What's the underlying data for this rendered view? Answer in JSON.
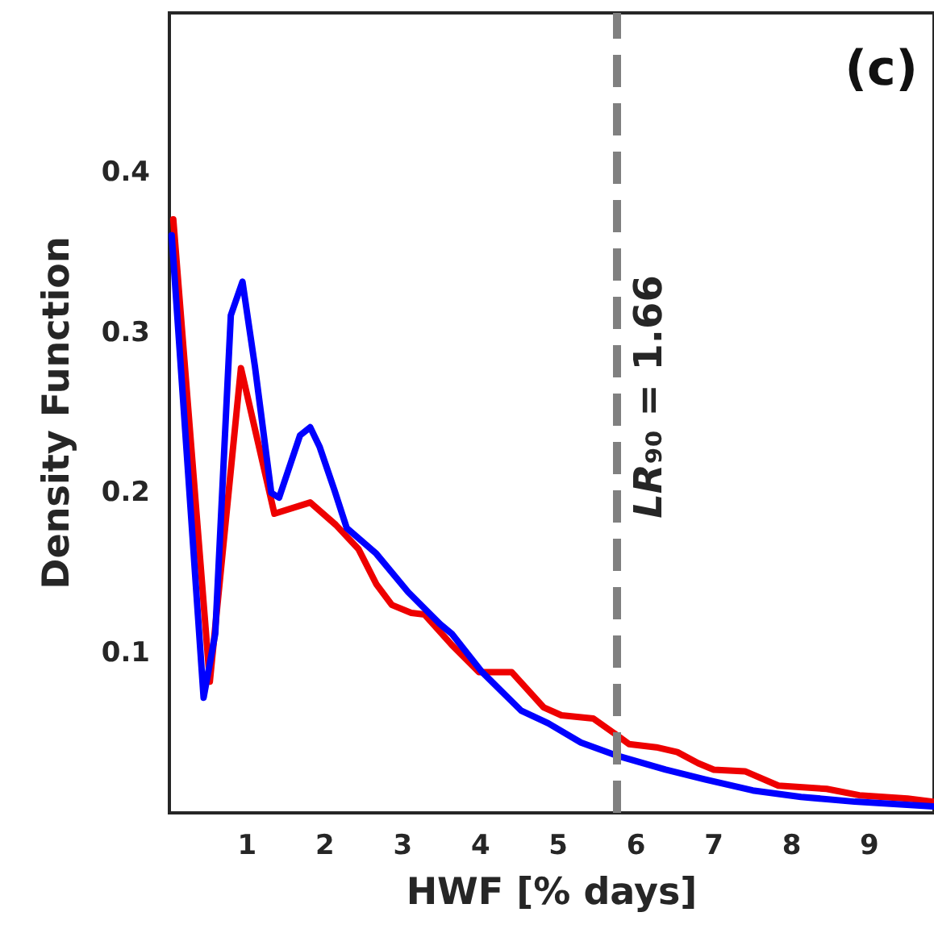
{
  "chart_data": {
    "type": "line",
    "xlabel": "HWF [% days]",
    "ylabel": "Density Function",
    "annotations": [
      "LR₉₀ = 1.66",
      "(c)"
    ],
    "xlim": [
      0,
      9.83
    ],
    "ylim": [
      0,
      0.5
    ],
    "xticks": [
      1,
      2,
      3,
      4,
      5,
      6,
      7,
      8,
      9
    ],
    "yticks": [
      0.1,
      0.2,
      0.3,
      0.4
    ],
    "grid": false,
    "marker": "none",
    "line_style": "solid",
    "ref_lines": [
      {
        "axis": "x",
        "value": 5.74,
        "color": "#808080",
        "line_style": "dashed"
      }
    ],
    "series": [
      {
        "color": "#ee0000",
        "x": [
          0.05,
          0.52,
          0.92,
          1.35,
          1.81,
          2.14,
          2.43,
          2.66,
          2.86,
          3.11,
          3.28,
          3.63,
          3.98,
          4.4,
          4.81,
          5.04,
          5.45,
          5.74,
          5.91,
          6.26,
          6.53,
          6.8,
          7.0,
          7.4,
          7.83,
          8.45,
          8.87,
          9.49,
          9.82
        ],
        "values": [
          0.371,
          0.082,
          0.278,
          0.187,
          0.194,
          0.18,
          0.165,
          0.143,
          0.13,
          0.125,
          0.124,
          0.105,
          0.088,
          0.088,
          0.066,
          0.061,
          0.059,
          0.049,
          0.043,
          0.041,
          0.038,
          0.031,
          0.027,
          0.026,
          0.017,
          0.015,
          0.011,
          0.009,
          0.007
        ]
      },
      {
        "color": "#0000ff",
        "x": [
          0.03,
          0.44,
          0.59,
          0.79,
          0.94,
          1.1,
          1.31,
          1.41,
          1.68,
          1.81,
          1.93,
          2.12,
          2.28,
          2.66,
          3.07,
          3.48,
          3.63,
          4.02,
          4.52,
          4.87,
          5.29,
          5.74,
          6.38,
          6.88,
          7.5,
          8.12,
          8.81,
          9.82
        ],
        "values": [
          0.361,
          0.072,
          0.112,
          0.311,
          0.332,
          0.279,
          0.2,
          0.197,
          0.236,
          0.241,
          0.229,
          0.202,
          0.178,
          0.162,
          0.138,
          0.118,
          0.112,
          0.088,
          0.064,
          0.056,
          0.044,
          0.036,
          0.027,
          0.021,
          0.014,
          0.01,
          0.007,
          0.004
        ]
      }
    ]
  }
}
